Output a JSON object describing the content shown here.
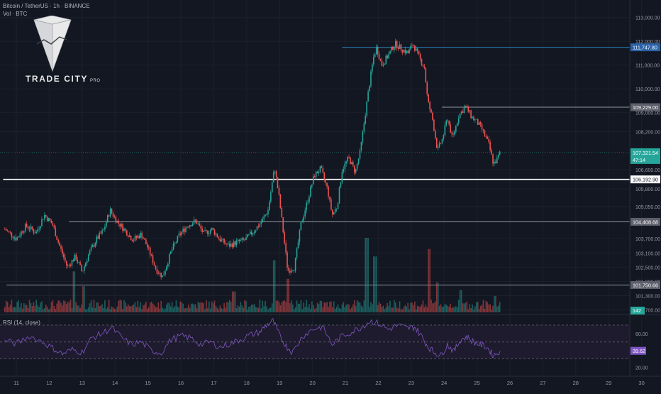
{
  "header": {
    "symbol": "Bitcoin / TetherUS · 1h · BINANCE",
    "volume_label": "Vol · BTC"
  },
  "logo": {
    "icon": "trade-city-crystal-icon",
    "brand": "TRADE CITY",
    "suffix": "PRO"
  },
  "colors": {
    "background": "#131722",
    "bull": "#26a69a",
    "bear": "#ef5350",
    "rsi_line": "#7e57c2",
    "rsi_band": "#1f1b2e",
    "level_blue": "#2a7fb8",
    "level_white": "#ffffff",
    "level_gray": "#9598a1"
  },
  "chart_data": {
    "type": "candlestick",
    "symbol": "Bitcoin / TetherUS",
    "timeframe": "1h",
    "exchange": "BINANCE",
    "x_ticks": [
      "11",
      "12",
      "13",
      "14",
      "15",
      "16",
      "17",
      "18",
      "19",
      "20",
      "21",
      "22",
      "23",
      "24",
      "25",
      "26",
      "27",
      "28",
      "29",
      "30"
    ],
    "y_ticks": [
      "113,000.00",
      "112,000.00",
      "111,000.00",
      "110,000.00",
      "109,000.00",
      "108,200.00",
      "106,600.00",
      "105,800.00",
      "105,050.00",
      "103,700.00",
      "103,100.00",
      "102,500.00",
      "101,900.00",
      "101,300.00",
      "100,700.00"
    ],
    "ylim": [
      100600,
      113200
    ],
    "current_price": "107,321.54",
    "countdown": "47:14",
    "levels": [
      {
        "price": 111747.8,
        "label": "111,747.80",
        "color": "blue",
        "start_day": 20.9
      },
      {
        "price": 109229.0,
        "label": "109,229.00",
        "color": "gray",
        "start_day": 23.93
      },
      {
        "price": 106192.9,
        "label": "106,192.90",
        "color": "white",
        "start_day": 10.6
      },
      {
        "price": 104408.68,
        "label": "104,408.68",
        "color": "gray",
        "start_day": 12.6
      },
      {
        "price": 101750.66,
        "label": "101,750.66",
        "color": "gray",
        "start_day": 10.7
      }
    ],
    "price_path": [
      [
        10.65,
        104100
      ],
      [
        11.0,
        103700
      ],
      [
        11.3,
        104250
      ],
      [
        11.6,
        103950
      ],
      [
        11.85,
        104700
      ],
      [
        12.1,
        104300
      ],
      [
        12.3,
        103450
      ],
      [
        12.55,
        102500
      ],
      [
        12.8,
        102950
      ],
      [
        13.0,
        102300
      ],
      [
        13.2,
        103050
      ],
      [
        13.45,
        103700
      ],
      [
        13.65,
        104050
      ],
      [
        13.85,
        104900
      ],
      [
        14.05,
        104450
      ],
      [
        14.3,
        104050
      ],
      [
        14.55,
        103650
      ],
      [
        14.8,
        103900
      ],
      [
        15.0,
        103300
      ],
      [
        15.25,
        102400
      ],
      [
        15.45,
        102100
      ],
      [
        15.7,
        103150
      ],
      [
        15.95,
        103850
      ],
      [
        16.2,
        104250
      ],
      [
        16.45,
        104450
      ],
      [
        16.7,
        103900
      ],
      [
        16.95,
        104100
      ],
      [
        17.2,
        103650
      ],
      [
        17.45,
        103400
      ],
      [
        17.7,
        103550
      ],
      [
        17.95,
        103650
      ],
      [
        18.2,
        104000
      ],
      [
        18.45,
        104400
      ],
      [
        18.65,
        104900
      ],
      [
        18.85,
        106700
      ],
      [
        19.0,
        105300
      ],
      [
        19.1,
        104100
      ],
      [
        19.25,
        102350
      ],
      [
        19.45,
        102500
      ],
      [
        19.65,
        104300
      ],
      [
        19.85,
        105300
      ],
      [
        20.05,
        106350
      ],
      [
        20.25,
        106650
      ],
      [
        20.45,
        105800
      ],
      [
        20.6,
        104700
      ],
      [
        20.75,
        105050
      ],
      [
        20.9,
        106600
      ],
      [
        21.1,
        107100
      ],
      [
        21.3,
        106500
      ],
      [
        21.45,
        107350
      ],
      [
        21.6,
        108900
      ],
      [
        21.72,
        110100
      ],
      [
        21.85,
        111300
      ],
      [
        21.95,
        111750
      ],
      [
        22.1,
        111000
      ],
      [
        22.3,
        111400
      ],
      [
        22.5,
        111900
      ],
      [
        22.7,
        111700
      ],
      [
        22.9,
        111500
      ],
      [
        23.05,
        111900
      ],
      [
        23.25,
        111300
      ],
      [
        23.4,
        110900
      ],
      [
        23.5,
        109500
      ],
      [
        23.65,
        108700
      ],
      [
        23.8,
        107400
      ],
      [
        23.95,
        107900
      ],
      [
        24.1,
        108800
      ],
      [
        24.25,
        107900
      ],
      [
        24.45,
        108900
      ],
      [
        24.65,
        109250
      ],
      [
        24.85,
        108800
      ],
      [
        25.0,
        108600
      ],
      [
        25.15,
        108300
      ],
      [
        25.35,
        107700
      ],
      [
        25.5,
        106850
      ],
      [
        25.6,
        107000
      ],
      [
        25.7,
        107321.54
      ]
    ],
    "rsi": {
      "label": "RSI (14, close)",
      "levels": [
        70,
        50,
        30
      ],
      "tick_labels": [
        "60.00",
        "20.00"
      ],
      "value": "39.62",
      "ylim": [
        18,
        80
      ],
      "path": [
        [
          10.65,
          52
        ],
        [
          11.0,
          48
        ],
        [
          11.4,
          57
        ],
        [
          11.8,
          50
        ],
        [
          12.1,
          43
        ],
        [
          12.4,
          36
        ],
        [
          12.7,
          41
        ],
        [
          13.0,
          38
        ],
        [
          13.3,
          55
        ],
        [
          13.6,
          60
        ],
        [
          13.9,
          67
        ],
        [
          14.2,
          55
        ],
        [
          14.5,
          47
        ],
        [
          14.8,
          50
        ],
        [
          15.1,
          40
        ],
        [
          15.4,
          37
        ],
        [
          15.7,
          53
        ],
        [
          16.0,
          57
        ],
        [
          16.3,
          55
        ],
        [
          16.6,
          47
        ],
        [
          16.9,
          50
        ],
        [
          17.2,
          44
        ],
        [
          17.5,
          48
        ],
        [
          17.8,
          53
        ],
        [
          18.1,
          58
        ],
        [
          18.4,
          62
        ],
        [
          18.6,
          70
        ],
        [
          18.8,
          75
        ],
        [
          19.0,
          58
        ],
        [
          19.2,
          45
        ],
        [
          19.4,
          38
        ],
        [
          19.7,
          57
        ],
        [
          20.0,
          65
        ],
        [
          20.3,
          68
        ],
        [
          20.6,
          47
        ],
        [
          20.9,
          57
        ],
        [
          21.2,
          62
        ],
        [
          21.5,
          68
        ],
        [
          21.75,
          75
        ],
        [
          22.0,
          72
        ],
        [
          22.3,
          65
        ],
        [
          22.6,
          70
        ],
        [
          22.9,
          66
        ],
        [
          23.1,
          68
        ],
        [
          23.3,
          58
        ],
        [
          23.5,
          45
        ],
        [
          23.7,
          38
        ],
        [
          23.9,
          34
        ],
        [
          24.1,
          47
        ],
        [
          24.3,
          39
        ],
        [
          24.5,
          53
        ],
        [
          24.7,
          56
        ],
        [
          24.9,
          50
        ],
        [
          25.1,
          47
        ],
        [
          25.3,
          44
        ],
        [
          25.5,
          34
        ],
        [
          25.7,
          39.62
        ]
      ]
    },
    "volume": {
      "label_value": "142",
      "spikes": [
        [
          12.75,
          0.55
        ],
        [
          13.05,
          0.35
        ],
        [
          17.6,
          0.28
        ],
        [
          18.85,
          0.7
        ],
        [
          19.25,
          0.45
        ],
        [
          21.65,
          1.0
        ],
        [
          21.9,
          0.75
        ],
        [
          23.55,
          0.85
        ],
        [
          23.8,
          0.4
        ],
        [
          24.5,
          0.3
        ],
        [
          25.55,
          0.22
        ]
      ]
    }
  }
}
